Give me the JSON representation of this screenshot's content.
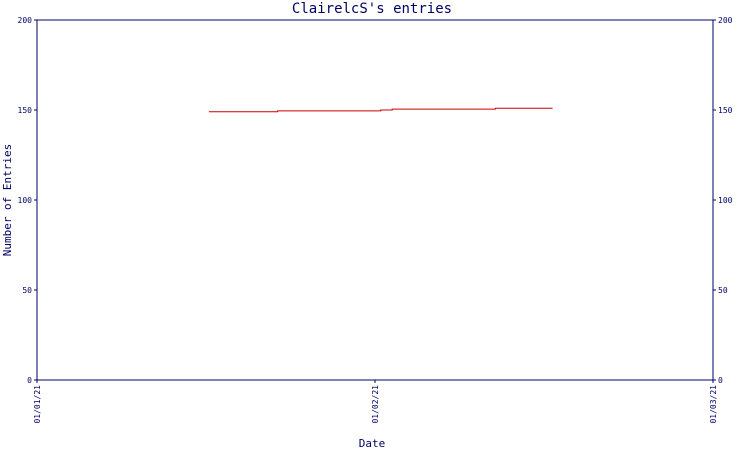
{
  "chart_data": {
    "type": "line",
    "title": "ClairelcS's entries",
    "xlabel": "Date",
    "ylabel": "Number of Entries",
    "ylim": [
      0,
      200
    ],
    "y_ticks": [
      "0",
      "50",
      "100",
      "150",
      "200"
    ],
    "x_ticks": [
      "01/01/21",
      "01/02/21",
      "01/03/21"
    ],
    "grid": false,
    "series": [
      {
        "color": "#cc0000",
        "x": [
          "01/01/21",
          "01/02/21",
          "01/03/21"
        ],
        "x_ticks_position_note": "",
        "points": [
          {
            "x": "2021-01-16",
            "y": 149
          },
          {
            "x": "2021-01-22",
            "y": 149
          },
          {
            "x": "2021-01-22",
            "y": 149.5
          },
          {
            "x": "2021-01-31",
            "y": 149.5
          },
          {
            "x": "2021-01-31",
            "y": 150
          },
          {
            "x": "2021-02-01",
            "y": 150
          },
          {
            "x": "2021-02-01",
            "y": 150.5
          },
          {
            "x": "2021-02-10",
            "y": 150.5
          },
          {
            "x": "2021-02-10",
            "y": 151
          },
          {
            "x": "2021-02-15",
            "y": 151
          }
        ]
      }
    ],
    "colors": {
      "axis": "#000066",
      "line": "#cc0000",
      "background": "#ffffff"
    }
  }
}
